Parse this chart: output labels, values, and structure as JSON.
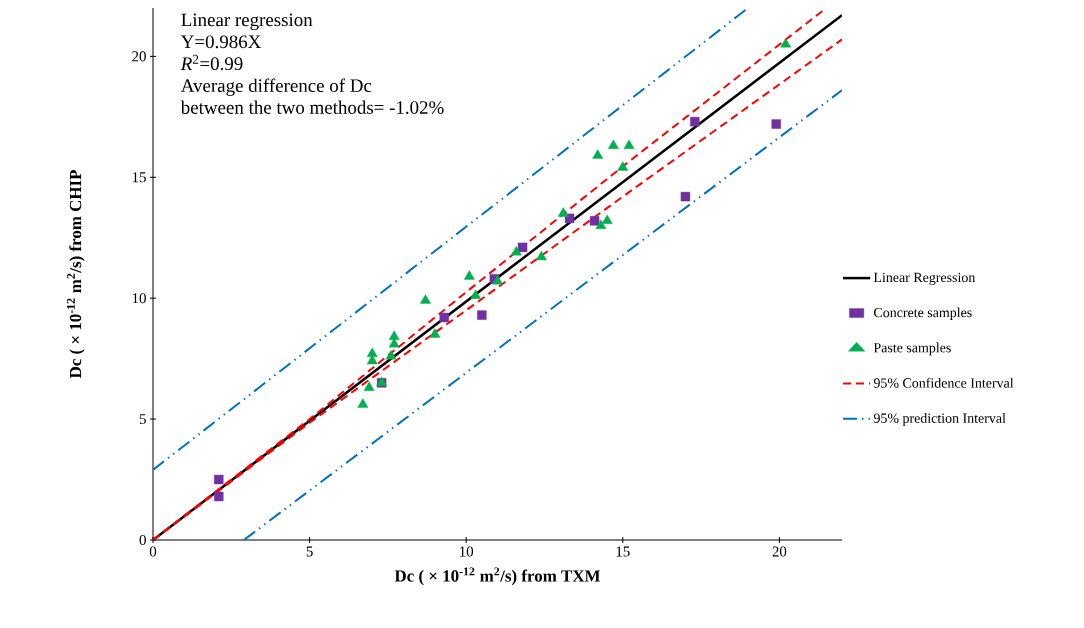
{
  "chart_data": {
    "type": "scatter",
    "xlabel": "Dc ( × 10$^{-12}$ m$^{2}$/s) from TXM",
    "ylabel": "Dc ( × 10$^{-12}$ m$^{2}$/s) from CHIP",
    "annotations": [
      "Linear regression",
      "Y=0.986X",
      "*R*$^{2}$=0.99",
      "Average difference of Dc",
      "between the two methods= -1.02%"
    ],
    "xlim": [
      0,
      22
    ],
    "ylim": [
      0,
      22
    ],
    "xticks": [
      0,
      5,
      10,
      15,
      20
    ],
    "yticks": [
      0,
      5,
      10,
      15,
      20
    ],
    "grid": false,
    "legend": "right",
    "series": [
      {
        "name": "Linear Regression",
        "type": "line",
        "color": "#000000",
        "line_style": "solid",
        "x": [
          0,
          22
        ],
        "values": [
          0,
          21.7
        ]
      },
      {
        "name": "Concrete samples",
        "color": "#7030a0",
        "marker": "square",
        "x": [
          2.1,
          2.1,
          7.3,
          9.3,
          10.5,
          10.9,
          11.8,
          13.3,
          14.1,
          17.0,
          17.3,
          19.9
        ],
        "values": [
          1.8,
          2.5,
          6.5,
          9.2,
          9.3,
          10.8,
          12.1,
          13.3,
          13.2,
          14.2,
          17.3,
          17.2
        ]
      },
      {
        "name": "Paste samples",
        "color": "#00b050",
        "marker": "triangle",
        "x": [
          6.7,
          6.9,
          7.3,
          7.0,
          7.0,
          7.6,
          7.7,
          7.7,
          8.7,
          9.0,
          10.1,
          10.3,
          11.0,
          11.6,
          12.4,
          13.1,
          14.3,
          14.5,
          15.0,
          14.2,
          14.7,
          15.2,
          20.2
        ],
        "values": [
          5.6,
          6.3,
          6.5,
          7.7,
          7.4,
          7.6,
          8.1,
          8.4,
          9.9,
          8.5,
          10.9,
          10.1,
          10.7,
          11.9,
          11.7,
          13.5,
          13.0,
          13.2,
          15.4,
          15.9,
          16.3,
          16.3,
          20.5
        ]
      },
      {
        "name": "95% Confidence Interval",
        "type": "line",
        "color": "#ff0000",
        "line_style": "dashed",
        "x": [
          0,
          5,
          10,
          15,
          21.4
        ],
        "values": [
          0,
          5.0,
          10.25,
          15.45,
          21.9
        ]
      },
      {
        "type": "line",
        "color": "#ff0000",
        "line_style": "dashed",
        "x": [
          0,
          5,
          10,
          15,
          22
        ],
        "values": [
          0,
          4.85,
          9.5,
          14.2,
          20.7
        ]
      },
      {
        "name": "95% prediction Interval",
        "type": "line",
        "color": "#0070c0",
        "line_style": "dashdotdot",
        "x": [
          0,
          19.0
        ],
        "values": [
          2.9,
          22
        ]
      },
      {
        "type": "line",
        "color": "#0070c0",
        "line_style": "dashdotdot",
        "x": [
          2.9,
          22
        ],
        "values": [
          0,
          18.6
        ]
      }
    ]
  }
}
